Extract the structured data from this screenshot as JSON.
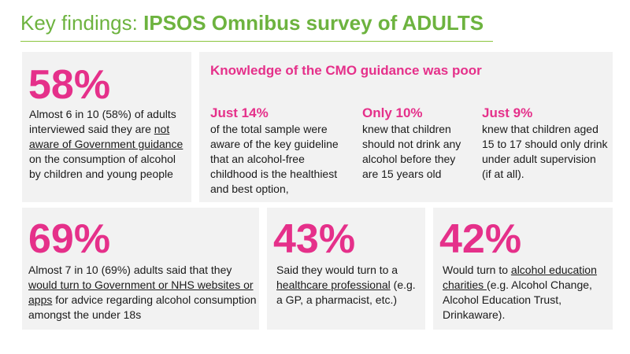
{
  "header": {
    "title_prefix": "Key findings: ",
    "title_bold": "IPSOS Omnibus survey of ADULTS"
  },
  "panel_58": {
    "stat": "58%",
    "text_1": "Almost 6 in 10 (58%) of adults interviewed said they are ",
    "text_underlined": "not aware of Government guidance ",
    "text_2": "on the consumption of alcohol by children and young people"
  },
  "panel_cmo": {
    "heading": "Knowledge of the CMO guidance was poor",
    "columns": [
      {
        "stat": "Just 14%",
        "text": "of the total sample were aware of the key guideline that an alcohol-free childhood is the healthiest and best option,"
      },
      {
        "stat": "Only 10%",
        "text": "knew that children should not drink any alcohol before they are 15 years old"
      },
      {
        "stat": "Just 9%",
        "text": "knew that children aged 15 to 17 should only drink under adult supervision (if at all)."
      }
    ]
  },
  "panel_69": {
    "stat": "69%",
    "text_1": "Almost 7 in 10 (69%) adults said that they ",
    "text_underlined": "would turn to Government or NHS websites or apps",
    "text_2": " for advice regarding alcohol consumption amongst the under 18s"
  },
  "panel_43": {
    "stat": "43%",
    "text_1": "Said they would turn to a ",
    "text_underlined": "healthcare professional",
    "text_2": " (e.g. a GP, a pharmacist, etc.)"
  },
  "panel_42": {
    "stat": "42%",
    "text_1": "Would turn to ",
    "text_underlined": "alcohol education charities ",
    "text_2": "(e.g. Alcohol Change, Alcohol Education Trust, Drinkaware)."
  },
  "colors": {
    "title_green": "#6db33f",
    "accent_pink": "#e5308a",
    "panel_grey": "#f2f2f2"
  }
}
